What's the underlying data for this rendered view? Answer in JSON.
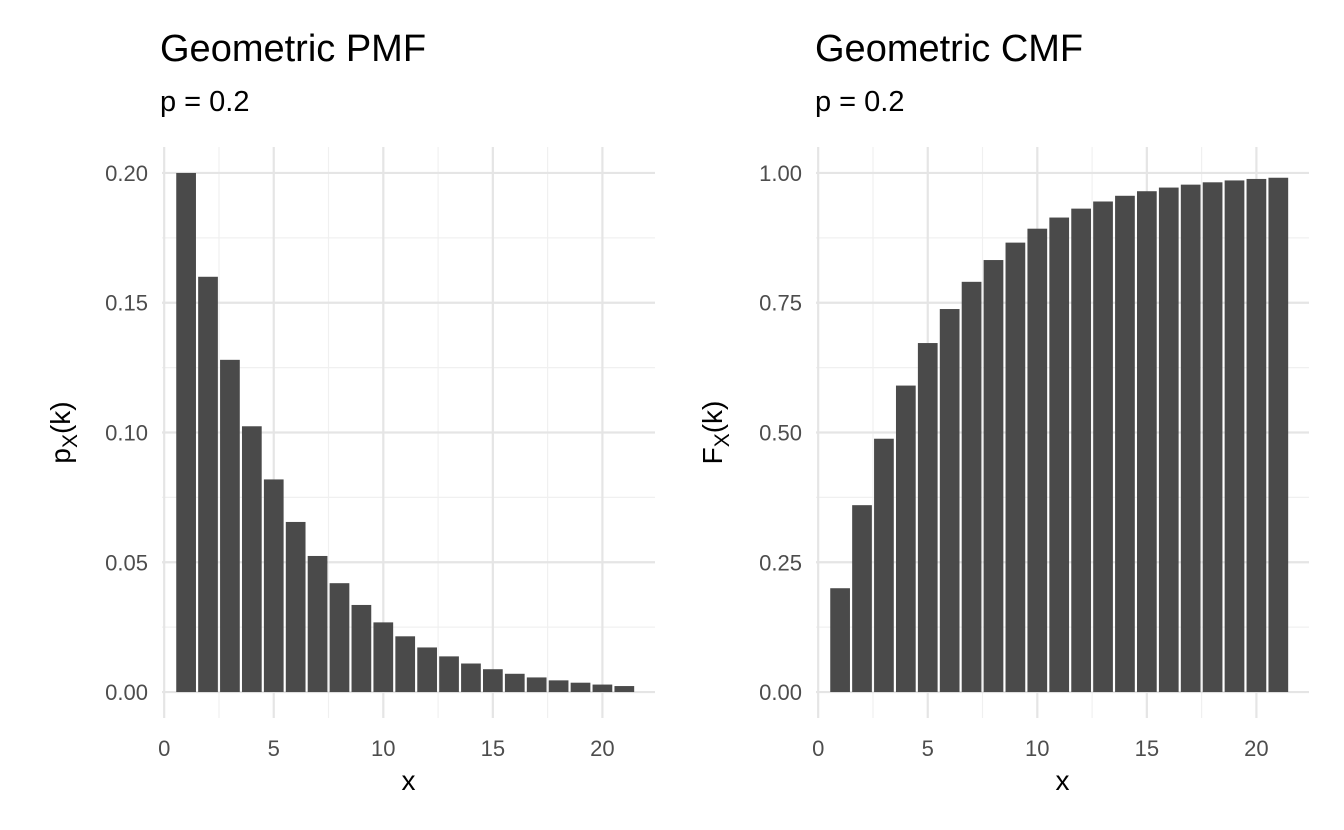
{
  "chart_data": [
    {
      "type": "bar",
      "title": "Geometric PMF",
      "subtitle": "p = 0.2",
      "xlabel": "x",
      "ylabel": "p_X(k)",
      "ylabel_main": "p",
      "ylabel_sub": "X",
      "ylabel_tail": "(k)",
      "x": [
        1,
        2,
        3,
        4,
        5,
        6,
        7,
        8,
        9,
        10,
        11,
        12,
        13,
        14,
        15,
        16,
        17,
        18,
        19,
        20,
        21
      ],
      "values": [
        0.2,
        0.16,
        0.128,
        0.1024,
        0.08192,
        0.065536,
        0.0524288,
        0.04194304,
        0.033554432,
        0.0268435456,
        0.02147483648,
        0.017179869184,
        0.0137438953472,
        0.01099511627776,
        0.008796093022208,
        0.0070368744177664,
        0.00562949953421312,
        0.004503599627370496,
        0.0036028797018963967,
        0.0028823037615171173,
        0.002305843009213694
      ],
      "xlim": [
        -0.1,
        22.4
      ],
      "ylim": [
        -0.01,
        0.21
      ],
      "xticks": [
        0,
        5,
        10,
        15,
        20
      ],
      "xtick_labels": [
        "0",
        "5",
        "10",
        "15",
        "20"
      ],
      "yticks": [
        0,
        0.05,
        0.1,
        0.15,
        0.2
      ],
      "ytick_labels": [
        "0.00",
        "0.05",
        "0.10",
        "0.15",
        "0.20"
      ],
      "grid": true,
      "bar_color": "#4a4a4a"
    },
    {
      "type": "bar",
      "title": "Geometric CMF",
      "subtitle": "p = 0.2",
      "xlabel": "x",
      "ylabel": "F_X(k)",
      "ylabel_main": "F",
      "ylabel_sub": "X",
      "ylabel_tail": "(k)",
      "x": [
        1,
        2,
        3,
        4,
        5,
        6,
        7,
        8,
        9,
        10,
        11,
        12,
        13,
        14,
        15,
        16,
        17,
        18,
        19,
        20,
        21
      ],
      "values": [
        0.2,
        0.36,
        0.488,
        0.5904,
        0.67232,
        0.737856,
        0.7902848,
        0.83222784,
        0.865782272,
        0.8926258176,
        0.91410065408,
        0.931280523264,
        0.9450244186112,
        0.95601953488896,
        0.964815627911168,
        0.9718525023289344,
        0.9774820018631475,
        0.981985601490518,
        0.9855884811924144,
        0.9884707849539315,
        0.9907766279631453
      ],
      "xlim": [
        -0.1,
        22.4
      ],
      "ylim": [
        -0.05,
        1.05
      ],
      "xticks": [
        0,
        5,
        10,
        15,
        20
      ],
      "xtick_labels": [
        "0",
        "5",
        "10",
        "15",
        "20"
      ],
      "yticks": [
        0,
        0.25,
        0.5,
        0.75,
        1.0
      ],
      "ytick_labels": [
        "0.00",
        "0.25",
        "0.50",
        "0.75",
        "1.00"
      ],
      "grid": true,
      "bar_color": "#4a4a4a"
    }
  ]
}
